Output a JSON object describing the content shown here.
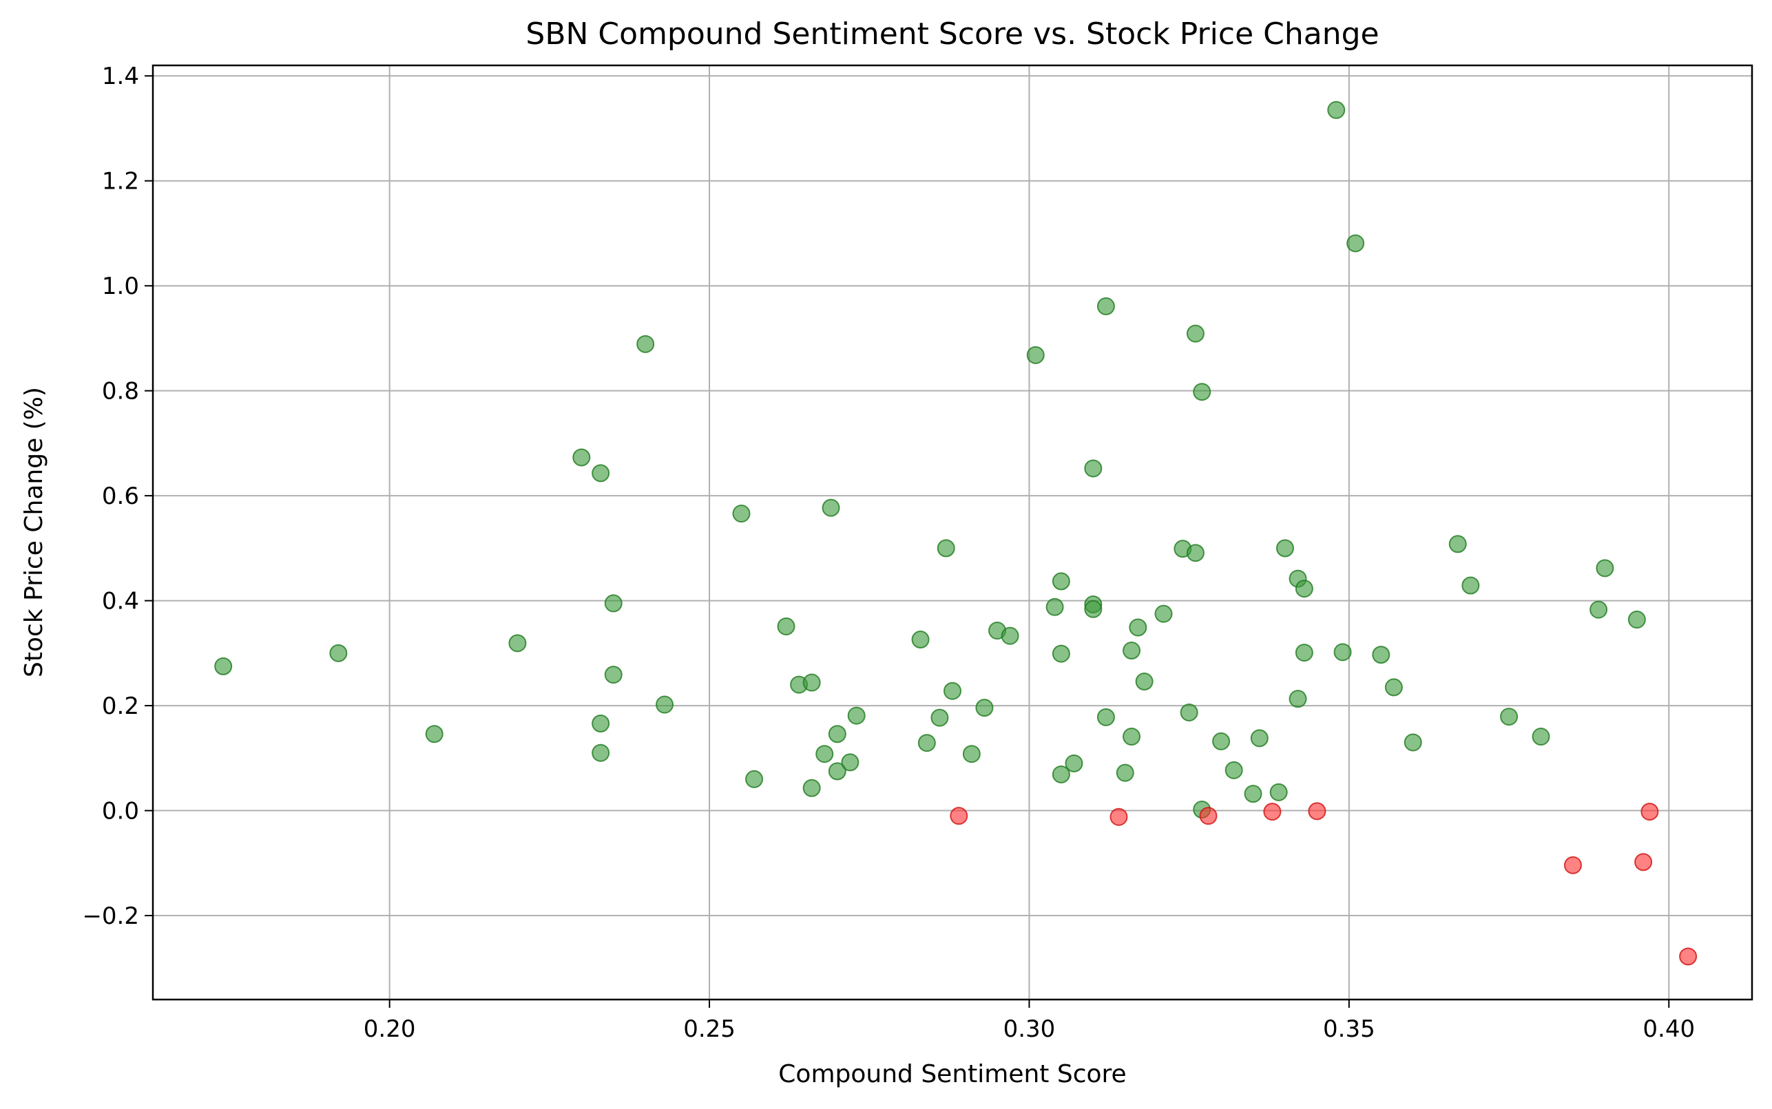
{
  "chart_data": {
    "type": "scatter",
    "title": "SBN Compound Sentiment Score vs. Stock Price Change",
    "xlabel": "Compound Sentiment Score",
    "ylabel": "Stock Price Change (%)",
    "xlim": [
      0.163,
      0.413
    ],
    "ylim": [
      -0.36,
      1.42
    ],
    "xticks": [
      0.2,
      0.25,
      0.3,
      0.35,
      0.4
    ],
    "xtick_labels": [
      "0.20",
      "0.25",
      "0.30",
      "0.35",
      "0.40"
    ],
    "yticks": [
      -0.2,
      0.0,
      0.2,
      0.4,
      0.6,
      0.8,
      1.0,
      1.2,
      1.4
    ],
    "ytick_labels": [
      "−0.2",
      "0.0",
      "0.2",
      "0.4",
      "0.6",
      "0.8",
      "1.0",
      "1.2",
      "1.4"
    ],
    "grid": true,
    "colors": {
      "positive": "#3a9a3a",
      "negative": "#ff3030",
      "positive_edge": "#1f7a1f",
      "negative_edge": "#d01010"
    },
    "points": [
      {
        "x": 0.174,
        "y": 0.275
      },
      {
        "x": 0.192,
        "y": 0.3
      },
      {
        "x": 0.207,
        "y": 0.146
      },
      {
        "x": 0.22,
        "y": 0.319
      },
      {
        "x": 0.23,
        "y": 0.673
      },
      {
        "x": 0.233,
        "y": 0.643
      },
      {
        "x": 0.233,
        "y": 0.11
      },
      {
        "x": 0.233,
        "y": 0.166
      },
      {
        "x": 0.235,
        "y": 0.395
      },
      {
        "x": 0.235,
        "y": 0.259
      },
      {
        "x": 0.24,
        "y": 0.889
      },
      {
        "x": 0.243,
        "y": 0.202
      },
      {
        "x": 0.255,
        "y": 0.566
      },
      {
        "x": 0.257,
        "y": 0.06
      },
      {
        "x": 0.262,
        "y": 0.351
      },
      {
        "x": 0.264,
        "y": 0.24
      },
      {
        "x": 0.266,
        "y": 0.244
      },
      {
        "x": 0.266,
        "y": 0.043
      },
      {
        "x": 0.268,
        "y": 0.108
      },
      {
        "x": 0.269,
        "y": 0.577
      },
      {
        "x": 0.27,
        "y": 0.146
      },
      {
        "x": 0.27,
        "y": 0.075
      },
      {
        "x": 0.272,
        "y": 0.092
      },
      {
        "x": 0.273,
        "y": 0.181
      },
      {
        "x": 0.283,
        "y": 0.326
      },
      {
        "x": 0.284,
        "y": 0.129
      },
      {
        "x": 0.286,
        "y": 0.177
      },
      {
        "x": 0.287,
        "y": 0.5
      },
      {
        "x": 0.288,
        "y": 0.228
      },
      {
        "x": 0.289,
        "y": -0.01
      },
      {
        "x": 0.291,
        "y": 0.108
      },
      {
        "x": 0.293,
        "y": 0.196
      },
      {
        "x": 0.295,
        "y": 0.343
      },
      {
        "x": 0.297,
        "y": 0.333
      },
      {
        "x": 0.301,
        "y": 0.868
      },
      {
        "x": 0.304,
        "y": 0.388
      },
      {
        "x": 0.305,
        "y": 0.437
      },
      {
        "x": 0.305,
        "y": 0.299
      },
      {
        "x": 0.305,
        "y": 0.069
      },
      {
        "x": 0.307,
        "y": 0.09
      },
      {
        "x": 0.31,
        "y": 0.393
      },
      {
        "x": 0.31,
        "y": 0.384
      },
      {
        "x": 0.31,
        "y": 0.652
      },
      {
        "x": 0.312,
        "y": 0.961
      },
      {
        "x": 0.312,
        "y": 0.178
      },
      {
        "x": 0.314,
        "y": -0.012
      },
      {
        "x": 0.315,
        "y": 0.072
      },
      {
        "x": 0.316,
        "y": 0.305
      },
      {
        "x": 0.316,
        "y": 0.141
      },
      {
        "x": 0.317,
        "y": 0.349
      },
      {
        "x": 0.318,
        "y": 0.246
      },
      {
        "x": 0.321,
        "y": 0.375
      },
      {
        "x": 0.324,
        "y": 0.499
      },
      {
        "x": 0.325,
        "y": 0.187
      },
      {
        "x": 0.326,
        "y": 0.909
      },
      {
        "x": 0.326,
        "y": 0.491
      },
      {
        "x": 0.327,
        "y": 0.798
      },
      {
        "x": 0.327,
        "y": 0.002
      },
      {
        "x": 0.328,
        "y": -0.01
      },
      {
        "x": 0.33,
        "y": 0.132
      },
      {
        "x": 0.332,
        "y": 0.077
      },
      {
        "x": 0.335,
        "y": 0.032
      },
      {
        "x": 0.336,
        "y": 0.138
      },
      {
        "x": 0.338,
        "y": -0.002
      },
      {
        "x": 0.339,
        "y": 0.035
      },
      {
        "x": 0.34,
        "y": 0.5
      },
      {
        "x": 0.342,
        "y": 0.213
      },
      {
        "x": 0.342,
        "y": 0.442
      },
      {
        "x": 0.343,
        "y": 0.423
      },
      {
        "x": 0.343,
        "y": 0.301
      },
      {
        "x": 0.345,
        "y": -0.001
      },
      {
        "x": 0.348,
        "y": 1.335
      },
      {
        "x": 0.349,
        "y": 0.302
      },
      {
        "x": 0.351,
        "y": 1.081
      },
      {
        "x": 0.355,
        "y": 0.297
      },
      {
        "x": 0.357,
        "y": 0.235
      },
      {
        "x": 0.36,
        "y": 0.13
      },
      {
        "x": 0.367,
        "y": 0.508
      },
      {
        "x": 0.369,
        "y": 0.429
      },
      {
        "x": 0.375,
        "y": 0.179
      },
      {
        "x": 0.38,
        "y": 0.141
      },
      {
        "x": 0.385,
        "y": -0.104
      },
      {
        "x": 0.389,
        "y": 0.383
      },
      {
        "x": 0.39,
        "y": 0.462
      },
      {
        "x": 0.395,
        "y": 0.364
      },
      {
        "x": 0.396,
        "y": -0.098
      },
      {
        "x": 0.397,
        "y": -0.002
      },
      {
        "x": 0.403,
        "y": -0.278
      }
    ]
  }
}
